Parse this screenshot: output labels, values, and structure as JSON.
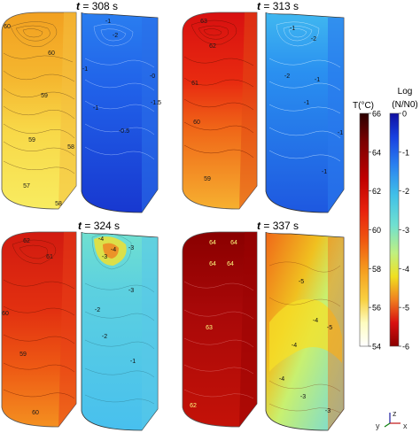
{
  "panels": [
    {
      "time": "308 s",
      "t_labels": [
        "60",
        "60",
        "59",
        "59",
        "58",
        "57",
        "58"
      ],
      "n_labels": [
        "-1",
        "-2",
        "-1",
        "-1",
        "-0",
        "-0.5",
        "-1.5"
      ]
    },
    {
      "time": "313 s",
      "t_labels": [
        "63",
        "62",
        "61",
        "60",
        "59"
      ],
      "n_labels": [
        "-1",
        "-2",
        "-2",
        "-1",
        "-1",
        "-1",
        "-1"
      ]
    },
    {
      "time": "324 s",
      "t_labels": [
        "62",
        "61",
        "60",
        "59",
        "60"
      ],
      "n_labels": [
        "-4",
        "-4",
        "-3",
        "-3",
        "-3",
        "-2",
        "-2",
        "-1"
      ]
    },
    {
      "time": "337 s",
      "t_labels": [
        "64",
        "64",
        "64",
        "64",
        "63",
        "62"
      ],
      "n_labels": [
        "-5",
        "-5",
        "-4",
        "-4",
        "-3",
        "-3",
        "-4"
      ]
    }
  ],
  "time_prefix": "t",
  "time_eq": " = ",
  "legend_temp": {
    "title": "T(°C)",
    "ticks": [
      "66",
      "64",
      "62",
      "60",
      "58",
      "56",
      "54"
    ]
  },
  "legend_log": {
    "title_line1": "Log",
    "title_line2": "(N/N0)",
    "ticks": [
      "0",
      "-1",
      "-2",
      "-3",
      "-4",
      "-5",
      "-6"
    ]
  },
  "axes": {
    "z": "z",
    "y": "y",
    "x": "x"
  },
  "colors": {
    "temp_scale": [
      "#2a0000",
      "#7a0000",
      "#c00000",
      "#e8220e",
      "#f05a10",
      "#f5a020",
      "#f8d040",
      "#fdfcc0",
      "#ffffff"
    ],
    "log_scale": [
      "#1010a0",
      "#1840e0",
      "#2a80f0",
      "#40c0e8",
      "#70e0d0",
      "#c0f080",
      "#f0e020",
      "#f08020",
      "#d81010",
      "#8a0000"
    ]
  }
}
